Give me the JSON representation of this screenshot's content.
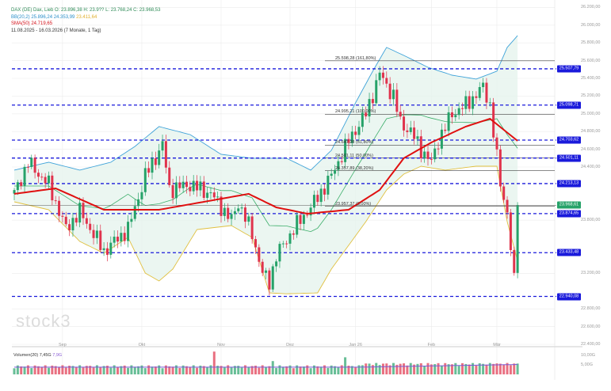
{
  "legend": {
    "instrument": "DAX (DE) Dax, Lieb O: 23.896,38 H: 23.9?? L: 23.768,24 C: 23.968,53",
    "bollinger": "BB(20,2) 25.896,24 24.353,99",
    "bollinger_lower": "23.411,64",
    "sma": "SMA(50) 24.719,65",
    "range": "11.08.2025 - 16.03.2026 (7 Monate, 1 Tag)"
  },
  "watermark": "stock3",
  "y_axis": {
    "ticks": [
      {
        "price": 26200,
        "label": "26.200,00"
      },
      {
        "price": 26000,
        "label": "26.000,00"
      },
      {
        "price": 25800,
        "label": "25.800,00"
      },
      {
        "price": 25600,
        "label": "25.600,00"
      },
      {
        "price": 25400,
        "label": "25.400,00"
      },
      {
        "price": 25200,
        "label": "25.200,00"
      },
      {
        "price": 25000,
        "label": "25.000,00"
      },
      {
        "price": 24800,
        "label": "24.800,00"
      },
      {
        "price": 24600,
        "label": "24.600,00"
      },
      {
        "price": 24400,
        "label": "24.400,00"
      },
      {
        "price": 23800,
        "label": "23.800,00"
      },
      {
        "price": 23200,
        "label": "23.200,00"
      },
      {
        "price": 22800,
        "label": "22.800,00"
      },
      {
        "price": 22600,
        "label": "22.600,00"
      },
      {
        "price": 22400,
        "label": "22.400,00"
      }
    ],
    "min": 22400,
    "max": 26200
  },
  "x_axis": {
    "days": 146,
    "ticks": [
      {
        "day": 14,
        "label": "Sep"
      },
      {
        "day": 37,
        "label": "Okt"
      },
      {
        "day": 60,
        "label": "Nov"
      },
      {
        "day": 80,
        "label": "Dez"
      },
      {
        "day": 99,
        "label": "Jan 26"
      },
      {
        "day": 121,
        "label": "Feb"
      },
      {
        "day": 140,
        "label": "Mär"
      }
    ]
  },
  "levels": [
    {
      "price": 25507.79,
      "label": "25.507,79"
    },
    {
      "price": 25098.71,
      "label": "25.098,71"
    },
    {
      "price": 24703.62,
      "label": "24.703,62"
    },
    {
      "price": 24501.11,
      "label": "24.501,11"
    },
    {
      "price": 24213.13,
      "label": "24.213,13"
    },
    {
      "price": 23874.65,
      "label": "23.874,65"
    },
    {
      "price": 23433.48,
      "label": "23.433,48"
    },
    {
      "price": 22940.08,
      "label": "22.940,08"
    }
  ],
  "current_price": {
    "price": 23968.61,
    "label": "23.968,61"
  },
  "fibonacci": [
    {
      "price": 25598.28,
      "label": "25.598,28 (161,80%)"
    },
    {
      "price": 24995.21,
      "label": "24.995,21 (100,00%)"
    },
    {
      "price": 24647.28,
      "label": "24.647,28 (61,80%)"
    },
    {
      "price": 24501.11,
      "label": "24.501,11 (50,00%)"
    },
    {
      "price": 24357.89,
      "label": "24.357,89 (38,20%)"
    },
    {
      "price": 23957.37,
      "label": "23.957,37 (0,00%)"
    }
  ],
  "chart_data": {
    "type": "candlestick",
    "price_keypoints": [
      [
        0,
        24100
      ],
      [
        4,
        24450
      ],
      [
        10,
        24200
      ],
      [
        15,
        23700
      ],
      [
        19,
        23900
      ],
      [
        26,
        23450
      ],
      [
        33,
        23700
      ],
      [
        38,
        24300
      ],
      [
        43,
        24650
      ],
      [
        45,
        24150
      ],
      [
        51,
        24200
      ],
      [
        57,
        24100
      ],
      [
        63,
        23800
      ],
      [
        65,
        24000
      ],
      [
        69,
        23650
      ],
      [
        72,
        23200
      ],
      [
        74,
        23100
      ],
      [
        76,
        23400
      ],
      [
        81,
        23700
      ],
      [
        87,
        24000
      ],
      [
        92,
        24300
      ],
      [
        97,
        24700
      ],
      [
        102,
        25000
      ],
      [
        106,
        25450
      ],
      [
        110,
        25200
      ],
      [
        112,
        24900
      ],
      [
        115,
        24800
      ],
      [
        118,
        24600
      ],
      [
        121,
        24450
      ],
      [
        123,
        24700
      ],
      [
        127,
        25000
      ],
      [
        131,
        25100
      ],
      [
        136,
        25300
      ],
      [
        138,
        25100
      ],
      [
        141,
        24200
      ],
      [
        143,
        23900
      ],
      [
        145,
        23100
      ],
      [
        146,
        23968
      ]
    ],
    "sma50": [
      [
        0,
        24097
      ],
      [
        12,
        24159
      ],
      [
        26,
        23918
      ],
      [
        42,
        23918
      ],
      [
        55,
        24007
      ],
      [
        68,
        24097
      ],
      [
        76,
        23945
      ],
      [
        85,
        23873
      ],
      [
        97,
        23918
      ],
      [
        106,
        24141
      ],
      [
        113,
        24499
      ],
      [
        121,
        24677
      ],
      [
        131,
        24856
      ],
      [
        138,
        24945
      ],
      [
        146,
        24695
      ]
    ],
    "bb_upper": [
      [
        0,
        24365
      ],
      [
        10,
        24454
      ],
      [
        19,
        24365
      ],
      [
        28,
        24454
      ],
      [
        35,
        24632
      ],
      [
        42,
        24856
      ],
      [
        51,
        24766
      ],
      [
        60,
        24543
      ],
      [
        69,
        24499
      ],
      [
        79,
        24499
      ],
      [
        86,
        24365
      ],
      [
        92,
        24588
      ],
      [
        99,
        25124
      ],
      [
        104,
        25481
      ],
      [
        108,
        25749
      ],
      [
        113,
        25659
      ],
      [
        120,
        25525
      ],
      [
        127,
        25436
      ],
      [
        134,
        25392
      ],
      [
        140,
        25481
      ],
      [
        143,
        25749
      ],
      [
        146,
        25883
      ]
    ],
    "bb_lower": [
      [
        0,
        24007
      ],
      [
        10,
        23918
      ],
      [
        19,
        23561
      ],
      [
        26,
        23427
      ],
      [
        33,
        23606
      ],
      [
        38,
        23204
      ],
      [
        42,
        23114
      ],
      [
        46,
        23249
      ],
      [
        53,
        23695
      ],
      [
        63,
        23739
      ],
      [
        69,
        23606
      ],
      [
        74,
        22980
      ],
      [
        79,
        22970
      ],
      [
        88,
        22980
      ],
      [
        92,
        23249
      ],
      [
        102,
        23784
      ],
      [
        108,
        24141
      ],
      [
        113,
        24320
      ],
      [
        118,
        24409
      ],
      [
        125,
        24365
      ],
      [
        134,
        24409
      ],
      [
        140,
        24409
      ],
      [
        143,
        23784
      ],
      [
        146,
        23338
      ]
    ],
    "volume_spikes": [
      [
        58,
        12
      ],
      [
        75,
        7
      ],
      [
        96,
        9
      ],
      [
        139,
        5.5
      ]
    ]
  },
  "volume": {
    "legend": "Volumen(20) 7,45G",
    "legend_ma": "7,9G",
    "ticks": [
      {
        "value": 10,
        "label": "10,00G"
      },
      {
        "value": 5,
        "label": "5,00G"
      }
    ]
  },
  "colors": {
    "up": "#26a269",
    "down": "#e0334c",
    "sma": "#e01010",
    "bb_upper": "#3fa3d9",
    "bb_mid": "#3cae6a",
    "bb_lower": "#e0c040",
    "level": "#1a1adb"
  }
}
